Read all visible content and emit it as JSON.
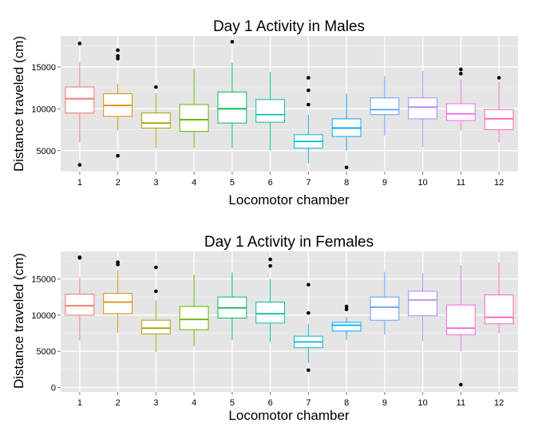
{
  "chart_data": [
    {
      "type": "box",
      "title": "Day 1 Activity in Males",
      "xlabel": "Locomotor chamber",
      "ylabel": "Distance traveled (cm)",
      "categories": [
        "1",
        "2",
        "3",
        "4",
        "5",
        "6",
        "7",
        "8",
        "9",
        "10",
        "11",
        "12"
      ],
      "y_ticks": [
        5000,
        10000,
        15000
      ],
      "y_tick_labels": [
        "5000",
        "10000",
        "15000"
      ],
      "ylim": [
        2500,
        18700
      ],
      "grid": true,
      "legend": "none",
      "boxes": [
        {
          "min": 6000,
          "q1": 9500,
          "median": 11200,
          "q3": 12600,
          "max": 15600,
          "outliers": [
            3300,
            17800
          ]
        },
        {
          "min": 7400,
          "q1": 9100,
          "median": 10400,
          "q3": 11800,
          "max": 13000,
          "outliers": [
            4400,
            16000,
            16300,
            17000
          ]
        },
        {
          "min": 5300,
          "q1": 7700,
          "median": 8300,
          "q3": 9500,
          "max": 11800,
          "outliers": [
            12600
          ]
        },
        {
          "min": 5300,
          "q1": 7300,
          "median": 8700,
          "q3": 10500,
          "max": 14800,
          "outliers": []
        },
        {
          "min": 5300,
          "q1": 8300,
          "median": 10000,
          "q3": 12000,
          "max": 15500,
          "outliers": [
            18000
          ]
        },
        {
          "min": 5000,
          "q1": 8400,
          "median": 9300,
          "q3": 11100,
          "max": 14400,
          "outliers": []
        },
        {
          "min": 3500,
          "q1": 5300,
          "median": 6100,
          "q3": 6900,
          "max": 9300,
          "outliers": [
            10500,
            12200,
            13700
          ]
        },
        {
          "min": 5000,
          "q1": 6700,
          "median": 7700,
          "q3": 8800,
          "max": 11800,
          "outliers": [
            3000
          ]
        },
        {
          "min": 6800,
          "q1": 9300,
          "median": 9900,
          "q3": 11300,
          "max": 13900,
          "outliers": []
        },
        {
          "min": 5400,
          "q1": 8800,
          "median": 10200,
          "q3": 11300,
          "max": 14500,
          "outliers": []
        },
        {
          "min": 7400,
          "q1": 8600,
          "median": 9400,
          "q3": 10600,
          "max": 13500,
          "outliers": [
            14200,
            14700
          ]
        },
        {
          "min": 6000,
          "q1": 7500,
          "median": 8800,
          "q3": 9900,
          "max": 13200,
          "outliers": [
            13700
          ]
        }
      ]
    },
    {
      "type": "box",
      "title": "Day 1 Activity in Females",
      "xlabel": "Locomotor chamber",
      "ylabel": "Distance traveled (cm)",
      "categories": [
        "1",
        "2",
        "3",
        "4",
        "5",
        "6",
        "7",
        "8",
        "9",
        "10",
        "11",
        "12"
      ],
      "y_ticks": [
        0,
        5000,
        10000,
        15000
      ],
      "y_tick_labels": [
        "0",
        "5000",
        "10000",
        "15000"
      ],
      "ylim": [
        -600,
        18800
      ],
      "grid": true,
      "legend": "none",
      "boxes": [
        {
          "min": 6500,
          "q1": 10000,
          "median": 11300,
          "q3": 12900,
          "max": 15200,
          "outliers": [
            17900,
            18000
          ]
        },
        {
          "min": 7600,
          "q1": 10200,
          "median": 11800,
          "q3": 13000,
          "max": 16200,
          "outliers": [
            17000,
            17300
          ]
        },
        {
          "min": 4900,
          "q1": 7400,
          "median": 8200,
          "q3": 9300,
          "max": 12000,
          "outliers": [
            13300,
            16600
          ]
        },
        {
          "min": 5700,
          "q1": 8000,
          "median": 9400,
          "q3": 11200,
          "max": 15600,
          "outliers": []
        },
        {
          "min": 6600,
          "q1": 9600,
          "median": 11000,
          "q3": 12500,
          "max": 15900,
          "outliers": []
        },
        {
          "min": 6300,
          "q1": 8900,
          "median": 10200,
          "q3": 11800,
          "max": 15000,
          "outliers": [
            16800,
            17700
          ]
        },
        {
          "min": 3400,
          "q1": 5500,
          "median": 6300,
          "q3": 7100,
          "max": 8800,
          "outliers": [
            2400,
            10300,
            14200
          ]
        },
        {
          "min": 6600,
          "q1": 7800,
          "median": 8600,
          "q3": 9000,
          "max": 9700,
          "outliers": [
            10800,
            11200
          ]
        },
        {
          "min": 7300,
          "q1": 9300,
          "median": 11100,
          "q3": 12500,
          "max": 16000,
          "outliers": []
        },
        {
          "min": 6400,
          "q1": 9900,
          "median": 12100,
          "q3": 13300,
          "max": 15800,
          "outliers": []
        },
        {
          "min": 5000,
          "q1": 7300,
          "median": 8200,
          "q3": 11400,
          "max": 16900,
          "outliers": [
            400
          ]
        },
        {
          "min": 7500,
          "q1": 8800,
          "median": 9700,
          "q3": 12800,
          "max": 17300,
          "outliers": []
        }
      ]
    }
  ],
  "series_colors": [
    "#F8766D",
    "#DB8E00",
    "#AEA200",
    "#64B200",
    "#00BD5C",
    "#00C1A7",
    "#00BADE",
    "#00A6FF",
    "#619CFF",
    "#B385FF",
    "#EF67EB",
    "#FF63B6"
  ],
  "panel_background": "#E5E5E5",
  "grid_color": "#FFFFFF"
}
